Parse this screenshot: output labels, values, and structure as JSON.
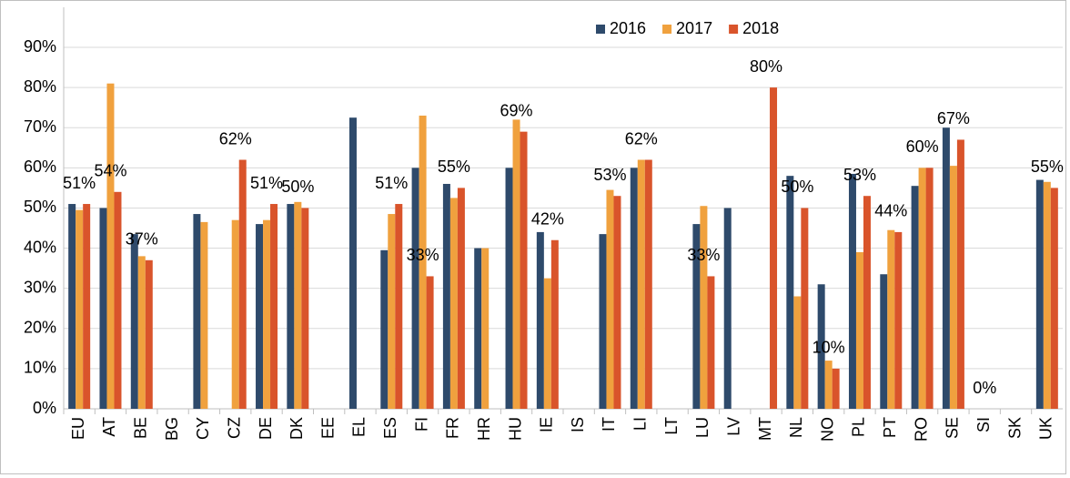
{
  "chart_data": {
    "type": "bar",
    "categories": [
      "EU",
      "AT",
      "BE",
      "BG",
      "CY",
      "CZ",
      "DE",
      "DK",
      "EE",
      "EL",
      "ES",
      "FI",
      "FR",
      "HR",
      "HU",
      "IE",
      "IS",
      "IT",
      "LI",
      "LT",
      "LU",
      "LV",
      "MT",
      "NL",
      "NO",
      "PL",
      "PT",
      "RO",
      "SE",
      "SI",
      "SK",
      "UK"
    ],
    "series": [
      {
        "name": "2016",
        "color": "#2e4a6b",
        "values": [
          51,
          50,
          43.5,
          null,
          48.5,
          null,
          46,
          51,
          null,
          72.5,
          39.5,
          60,
          56,
          40,
          60,
          44,
          null,
          43.5,
          60,
          null,
          46,
          50,
          null,
          58,
          31,
          58.5,
          33.5,
          55.5,
          70,
          null,
          null,
          57
        ]
      },
      {
        "name": "2017",
        "color": "#f0a13e",
        "values": [
          49.5,
          81,
          38,
          null,
          46.5,
          47,
          47,
          51.5,
          null,
          null,
          48.5,
          73,
          52.5,
          40,
          72,
          32.5,
          null,
          54.5,
          62,
          null,
          50.5,
          null,
          null,
          28,
          12,
          39,
          44.5,
          60,
          60.5,
          null,
          null,
          56.5
        ]
      },
      {
        "name": "2018",
        "color": "#d9542b",
        "values": [
          51,
          54,
          37,
          null,
          null,
          62,
          51,
          50,
          null,
          null,
          51,
          33,
          55,
          null,
          69,
          42,
          null,
          53,
          62,
          null,
          33,
          null,
          80,
          50,
          10,
          53,
          44,
          60,
          67,
          0,
          null,
          55
        ],
        "value_labels": [
          "51%",
          "54%",
          "37%",
          null,
          null,
          "62%",
          "51%",
          "50%",
          null,
          null,
          "51%",
          "33%",
          "55%",
          null,
          "69%",
          "42%",
          null,
          "53%",
          "62%",
          null,
          "33%",
          null,
          "80%",
          "50%",
          "10%",
          "53%",
          "44%",
          "60%",
          "67%",
          "0%",
          null,
          "55%"
        ]
      }
    ],
    "ylim": [
      0,
      90
    ],
    "yticks": [
      {
        "value": 0,
        "label": "0%"
      },
      {
        "value": 10,
        "label": "10%"
      },
      {
        "value": 20,
        "label": "20%"
      },
      {
        "value": 30,
        "label": "30%"
      },
      {
        "value": 40,
        "label": "40%"
      },
      {
        "value": 50,
        "label": "50%"
      },
      {
        "value": 60,
        "label": "60%"
      },
      {
        "value": 70,
        "label": "70%"
      },
      {
        "value": 80,
        "label": "80%"
      },
      {
        "value": 90,
        "label": "90%"
      }
    ],
    "grid": true,
    "legend": "top-right"
  }
}
